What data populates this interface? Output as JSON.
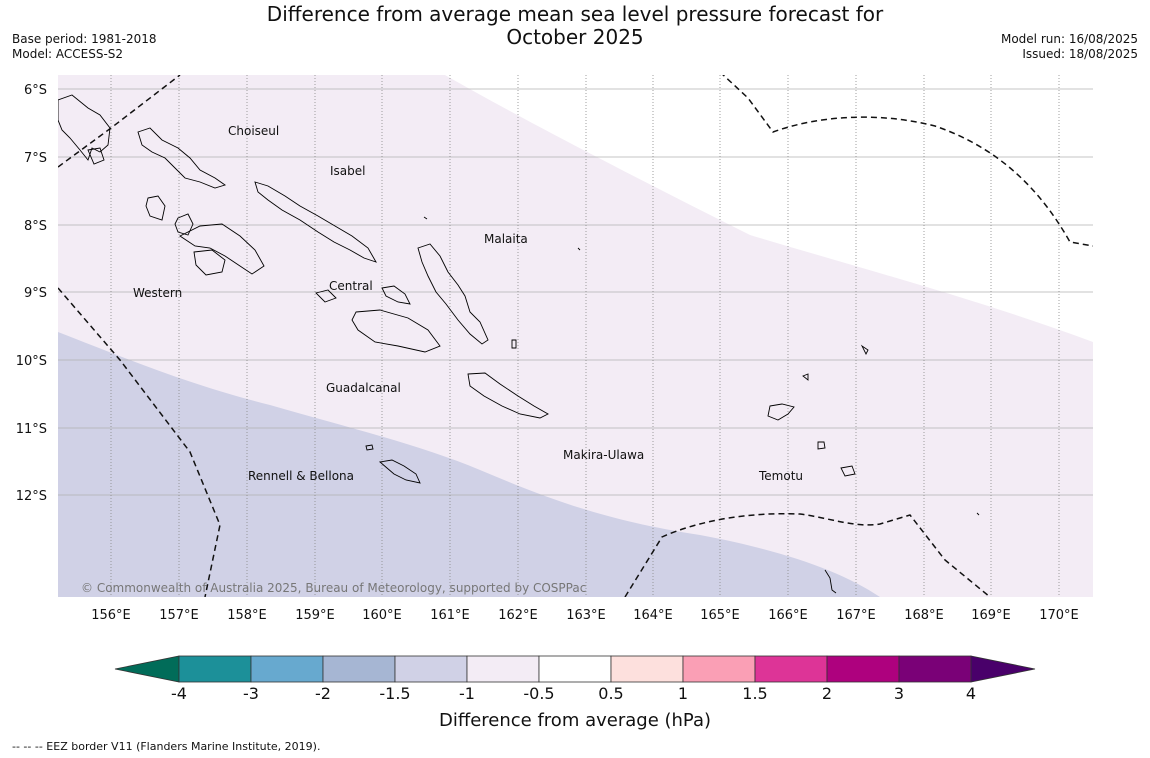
{
  "title": {
    "line1": "Difference from average mean sea level pressure forecast for",
    "line2": "October 2025"
  },
  "meta": {
    "base_period": "Base period: 1981-2018",
    "model": "Model: ACCESS-S2",
    "model_run": "Model run: 16/08/2025",
    "issued": "Issued: 18/08/2025"
  },
  "map": {
    "lat_labels": [
      "6°S",
      "7°S",
      "8°S",
      "9°S",
      "10°S",
      "11°S",
      "12°S"
    ],
    "lon_labels": [
      "156°E",
      "157°E",
      "158°E",
      "159°E",
      "160°E",
      "161°E",
      "162°E",
      "163°E",
      "164°E",
      "165°E",
      "166°E",
      "167°E",
      "168°E",
      "169°E",
      "170°E"
    ],
    "regions": {
      "choiseul": "Choiseul",
      "isabel": "Isabel",
      "malaita": "Malaita",
      "western": "Western",
      "central": "Central",
      "guadalcanal": "Guadalcanal",
      "rennell": "Rennell & Bellona",
      "makira": "Makira-Ulawa",
      "temotu": "Temotu"
    },
    "copyright": "© Commonwealth of Australia 2025, Bureau of Meteorology, supported by COSPPac",
    "shading": [
      {
        "range": "-1 to -0.5",
        "color": "#f3ecf5"
      },
      {
        "range": "-1.5 to -1",
        "color": "#d0d1e6"
      }
    ]
  },
  "colorbar": {
    "title": "Difference from average (hPa)",
    "ticks": [
      "-4",
      "-3",
      "-2",
      "-1.5",
      "-1",
      "-0.5",
      "0.5",
      "1",
      "1.5",
      "2",
      "3",
      "4"
    ],
    "colors": [
      "#1c9099",
      "#67a9cf",
      "#a6b6d3",
      "#d0d1e6",
      "#f3ecf5",
      "#ffffff",
      "#fde0dd",
      "#fa9fb5",
      "#dd3497",
      "#ae017e",
      "#7a0177"
    ],
    "extend_low_color": "#016c59",
    "extend_high_color": "#49006a"
  },
  "footnote": "--  --  -- EEZ border V11 (Flanders Marine Institute, 2019)."
}
